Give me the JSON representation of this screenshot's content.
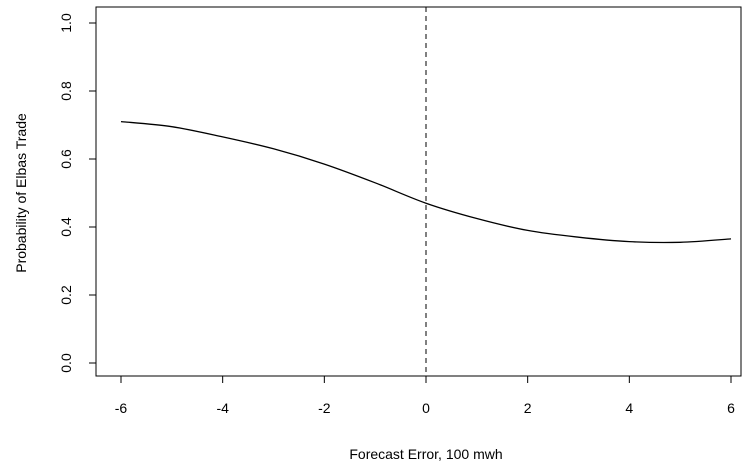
{
  "chart_data": {
    "type": "line",
    "title": "",
    "xlabel": "Forecast Error, 100 mwh",
    "ylabel": "Probability of Elbas Trade",
    "xlim": [
      -6,
      6
    ],
    "ylim": [
      0,
      1
    ],
    "x_ticks": [
      -6,
      -4,
      -2,
      0,
      2,
      4,
      6
    ],
    "y_ticks": [
      "0.0",
      "0.2",
      "0.4",
      "0.6",
      "0.8",
      "1.0"
    ],
    "grid": false,
    "legend": "none",
    "reference_line": {
      "x": 0,
      "style": "dashed"
    },
    "series": [
      {
        "x": [
          -6,
          -5,
          -4,
          -3,
          -2,
          -1,
          0,
          1,
          2,
          3,
          4,
          5,
          6
        ],
        "y": [
          0.71,
          0.695,
          0.665,
          0.63,
          0.585,
          0.53,
          0.47,
          0.425,
          0.39,
          0.37,
          0.357,
          0.355,
          0.365
        ]
      }
    ]
  }
}
